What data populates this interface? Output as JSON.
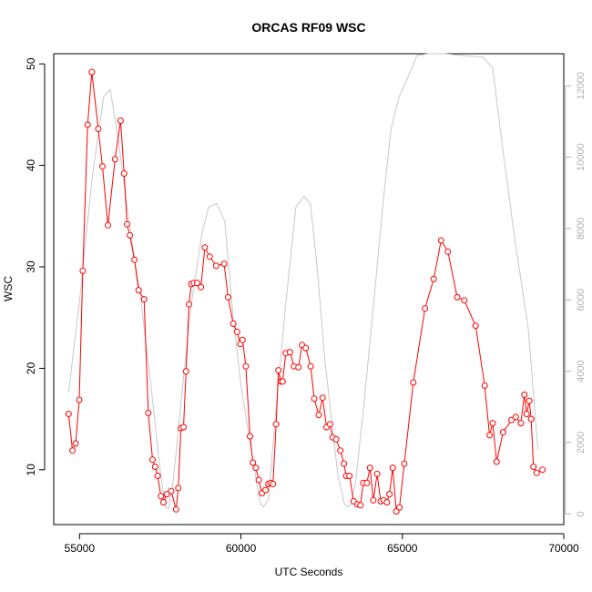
{
  "chart_data": {
    "type": "line",
    "title": "ORCAS RF09 WSC",
    "xlabel": "UTC Seconds",
    "ylabel": "WSC",
    "xlim": [
      54200,
      70000
    ],
    "ylim": [
      4.6,
      51
    ],
    "ylim_right": [
      -300,
      12900
    ],
    "x_ticks": [
      55000,
      60000,
      65000,
      70000
    ],
    "y_ticks": [
      10,
      20,
      30,
      40,
      50
    ],
    "y_ticks_right": [
      0,
      2000,
      4000,
      6000,
      8000,
      10000,
      12000
    ],
    "grid": false,
    "colors": {
      "primary": "#ff0000",
      "secondary": "#c8c8c8"
    },
    "series": [
      {
        "axis": "left",
        "style": "line-with-open-circles",
        "color": "#ff0000",
        "x": [
          54660,
          54780,
          54880,
          54990,
          55100,
          55250,
          55380,
          55580,
          55710,
          55880,
          56100,
          56270,
          56380,
          56470,
          56560,
          56700,
          56830,
          57000,
          57130,
          57260,
          57340,
          57420,
          57520,
          57600,
          57700,
          57840,
          57990,
          58060,
          58140,
          58220,
          58300,
          58390,
          58460,
          58540,
          58640,
          58760,
          58880,
          59030,
          59230,
          59480,
          59600,
          59760,
          59880,
          59980,
          60050,
          60150,
          60280,
          60370,
          60460,
          60550,
          60650,
          60760,
          60850,
          60920,
          60990,
          61090,
          61160,
          61240,
          61290,
          61390,
          61520,
          61640,
          61780,
          61890,
          62010,
          62160,
          62270,
          62410,
          62530,
          62650,
          62760,
          62840,
          62950,
          63080,
          63190,
          63260,
          63360,
          63490,
          63610,
          63700,
          63790,
          63900,
          64000,
          64100,
          64220,
          64330,
          64420,
          64520,
          64600,
          64700,
          64810,
          64910,
          65060,
          65340,
          65700,
          65970,
          66200,
          66410,
          66700,
          66920,
          67270,
          67550,
          67700,
          67800,
          67920,
          68120,
          68380,
          68510,
          68670,
          68780,
          68850,
          68930,
          68990,
          69060,
          69160,
          69340
        ],
        "y": [
          15.5,
          11.9,
          12.6,
          16.9,
          29.6,
          44.0,
          49.2,
          43.6,
          39.9,
          34.1,
          40.6,
          44.4,
          39.2,
          34.2,
          33.1,
          30.7,
          27.7,
          26.8,
          15.6,
          11.0,
          10.3,
          9.4,
          7.4,
          6.8,
          7.6,
          7.9,
          6.1,
          8.2,
          14.1,
          14.2,
          19.7,
          26.3,
          28.3,
          28.4,
          28.4,
          28.0,
          31.9,
          31.0,
          30.1,
          30.3,
          27.0,
          24.4,
          23.6,
          22.4,
          22.8,
          20.2,
          13.3,
          10.7,
          10.2,
          9.0,
          7.7,
          8.0,
          8.6,
          8.7,
          8.6,
          14.5,
          19.8,
          18.7,
          18.7,
          21.5,
          21.6,
          20.2,
          20.1,
          22.3,
          22.0,
          20.2,
          17.0,
          15.4,
          17.1,
          14.2,
          14.5,
          13.2,
          13.0,
          11.9,
          10.6,
          9.4,
          9.4,
          6.9,
          6.6,
          6.5,
          8.7,
          8.7,
          10.2,
          7.0,
          9.6,
          6.9,
          7.0,
          6.8,
          7.6,
          10.2,
          5.9,
          6.3,
          10.6,
          18.6,
          25.9,
          28.8,
          32.6,
          31.5,
          27.0,
          26.7,
          24.2,
          18.3,
          13.4,
          14.6,
          10.8,
          13.7,
          14.9,
          15.2,
          14.6,
          17.4,
          15.5,
          16.8,
          15.0,
          10.3,
          9.7,
          10.0
        ]
      },
      {
        "axis": "right",
        "style": "line",
        "color": "#c8c8c8",
        "x": [
          54660,
          55000,
          55400,
          55750,
          55950,
          56200,
          56500,
          56900,
          57200,
          57500,
          57650,
          57760,
          57900,
          58150,
          58450,
          58800,
          59000,
          59250,
          59500,
          59750,
          60000,
          60300,
          60500,
          60600,
          60700,
          60850,
          61100,
          61400,
          61700,
          61950,
          62150,
          62350,
          62600,
          62850,
          63000,
          63200,
          63300,
          63400,
          63550,
          63800,
          64100,
          64400,
          64650,
          64900,
          65200,
          65450,
          65800,
          66300,
          67500,
          67800,
          68100,
          68500,
          68900,
          69200
        ],
        "y": [
          3400,
          6000,
          9500,
          11700,
          11900,
          10500,
          8400,
          6000,
          3700,
          1200,
          200,
          150,
          900,
          3200,
          5800,
          7900,
          8600,
          8700,
          8200,
          5600,
          3600,
          1900,
          800,
          300,
          200,
          400,
          3100,
          6000,
          8600,
          8900,
          8700,
          7000,
          4300,
          2300,
          1100,
          300,
          200,
          250,
          900,
          3000,
          5800,
          8700,
          10800,
          11700,
          12300,
          12850,
          12900,
          12900,
          12800,
          12500,
          10300,
          7600,
          5200,
          1800
        ]
      }
    ]
  }
}
